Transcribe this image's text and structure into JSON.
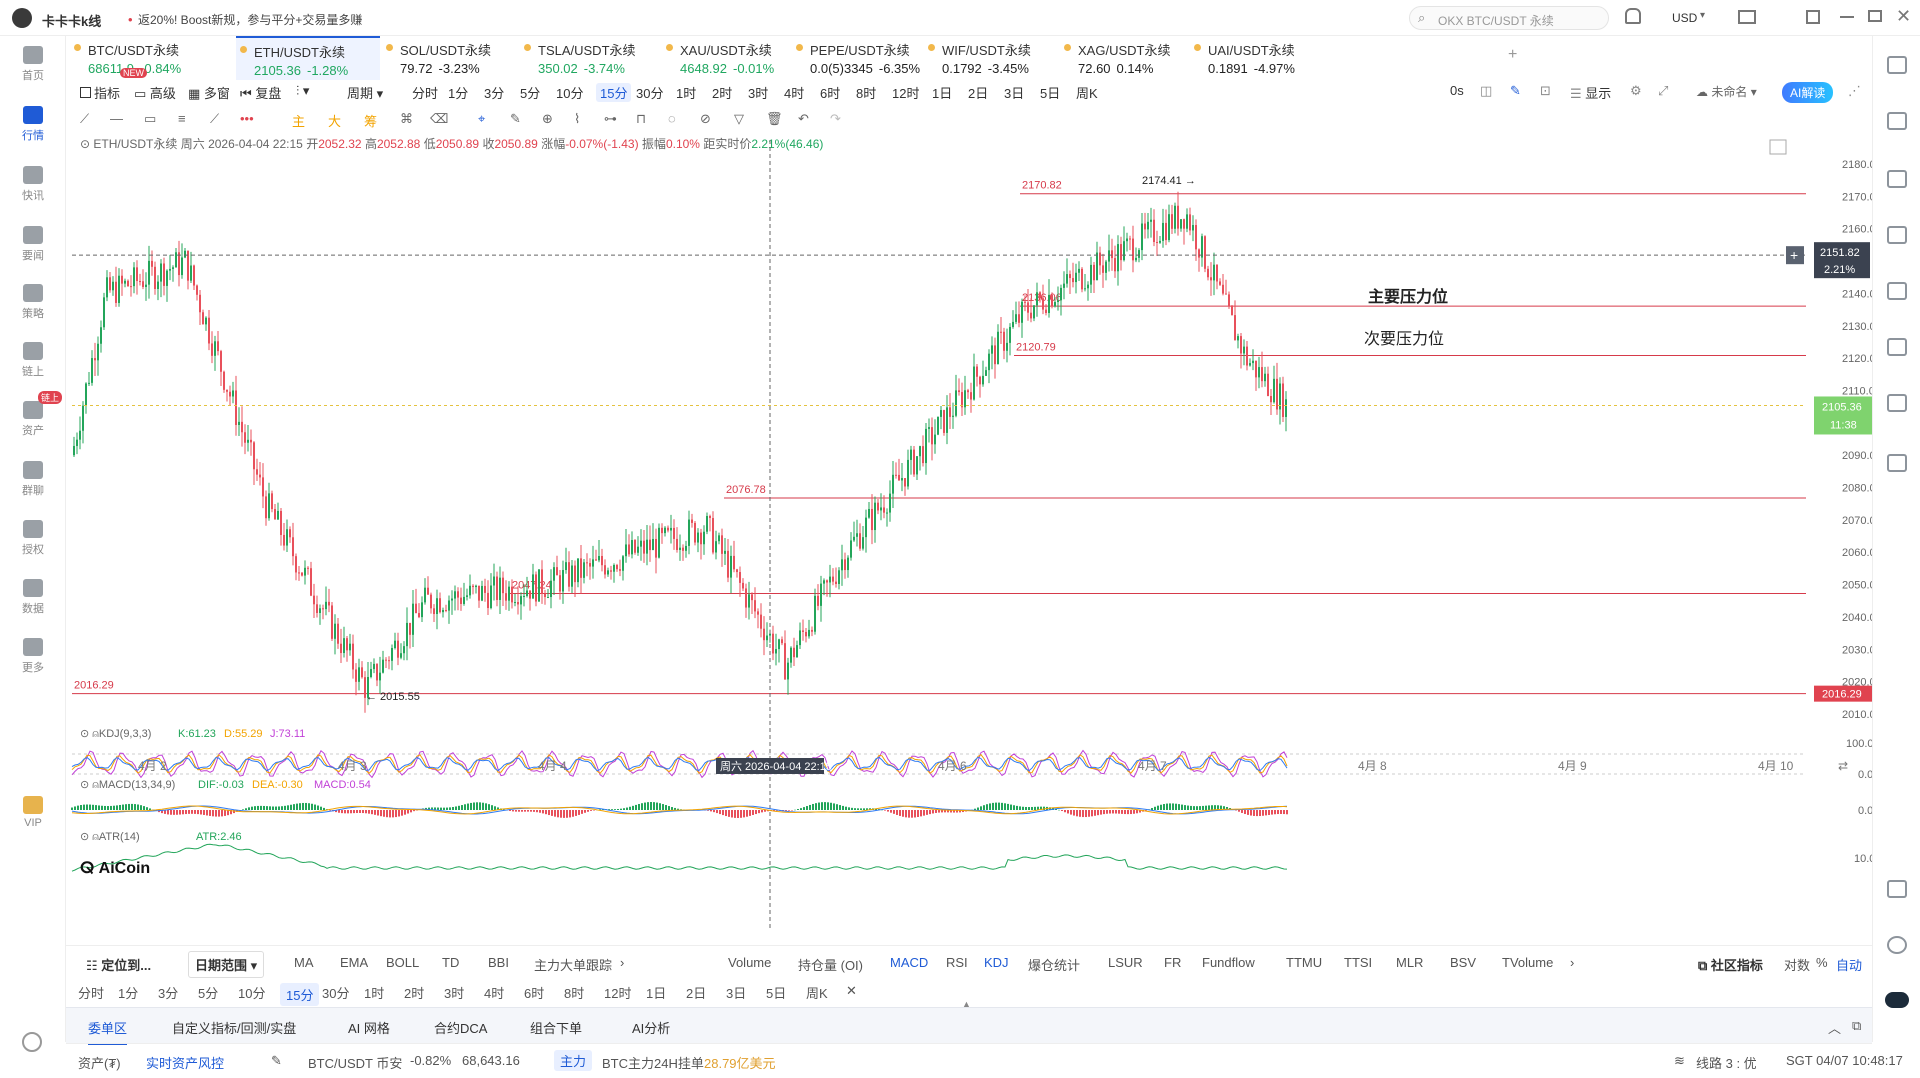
{
  "app": {
    "title": "卡卡卡k线",
    "promo": "返20%! Boost新规，参与平分+交易量多赚",
    "search_placeholder": "OKX BTC/USDT 永续",
    "currency": "USD"
  },
  "nav": [
    {
      "label": "首页",
      "icon": "home-icon"
    },
    {
      "label": "行情",
      "icon": "chart-bar-icon",
      "active": true
    },
    {
      "label": "快讯",
      "icon": "news-icon"
    },
    {
      "label": "要闻",
      "icon": "article-icon"
    },
    {
      "label": "策略",
      "icon": "strategy-icon"
    },
    {
      "label": "链上",
      "icon": "chain-icon"
    },
    {
      "label": "资产",
      "icon": "wallet-icon",
      "badge": "链上"
    },
    {
      "label": "群聊",
      "icon": "chat-icon"
    },
    {
      "label": "授权",
      "icon": "auth-icon"
    },
    {
      "label": "数据",
      "icon": "data-icon"
    },
    {
      "label": "更多",
      "icon": "more-icon"
    },
    {
      "label": "VIP",
      "icon": "vip-icon"
    }
  ],
  "tickers": [
    {
      "name": "BTC/USDT永续",
      "price": "68611.9",
      "change": "-0.84%",
      "dir": "up",
      "badge": "NEW"
    },
    {
      "name": "ETH/USDT永续",
      "price": "2105.36",
      "change": "-1.28%",
      "dir": "up",
      "active": true
    },
    {
      "name": "SOL/USDT永续",
      "price": "79.72",
      "change": "-3.23%",
      "dir": "none"
    },
    {
      "name": "TSLA/USDT永续",
      "price": "350.02",
      "change": "-3.74%",
      "dir": "up"
    },
    {
      "name": "XAU/USDT永续",
      "price": "4648.92",
      "change": "-0.01%",
      "dir": "up"
    },
    {
      "name": "PEPE/USDT永续",
      "price": "0.0(5)3345",
      "change": "-6.35%",
      "dir": "none"
    },
    {
      "name": "WIF/USDT永续",
      "price": "0.1792",
      "change": "-3.45%",
      "dir": "none"
    },
    {
      "name": "XAG/USDT永续",
      "price": "72.60",
      "change": "0.14%",
      "dir": "none"
    },
    {
      "name": "UAI/USDT永续",
      "price": "0.1891",
      "change": "-4.97%",
      "dir": "none"
    }
  ],
  "toolbar1": {
    "indicator": "指标",
    "advanced": "高级",
    "multi": "多窗",
    "replay": "复盘",
    "period": "周期",
    "intervals": [
      "分时",
      "1分",
      "3分",
      "5分",
      "10分",
      "15分",
      "30分",
      "1时",
      "2时",
      "3时",
      "4时",
      "6时",
      "8时",
      "12时",
      "1日",
      "2日",
      "3日",
      "5日",
      "周K"
    ],
    "selected_interval": "15分",
    "countdown": "0s",
    "display": "显示",
    "unnamed": "未命名",
    "ai": "AI解读"
  },
  "toolbar2": {
    "main": "主",
    "big": "大",
    "chip": "筹"
  },
  "info_line": {
    "symbol": "ETH/USDT永续",
    "time": "周六 2026-04-04 22:15",
    "open_label": "开",
    "open": "2052.32",
    "high_label": "高",
    "high": "2052.88",
    "low_label": "低",
    "low": "2050.89",
    "close_label": "收",
    "close": "2050.89",
    "chg_label": "涨幅",
    "chg": "-0.07%(-1.43)",
    "amp_label": "振幅",
    "amp": "0.10%",
    "dist_label": "距实时价",
    "dist": "2.21%(46.46)"
  },
  "chart_data": {
    "type": "candlestick",
    "symbol": "ETH/USDT永续",
    "interval": "15分",
    "ylim": [
      2010,
      2180
    ],
    "y_ticks": [
      "2180.00",
      "2170.00",
      "2160.00",
      "2140.00",
      "2130.00",
      "2120.00",
      "2110.00",
      "2090.00",
      "2080.00",
      "2070.00",
      "2060.00",
      "2050.00",
      "2040.00",
      "2030.00",
      "2020.00",
      "2010.00"
    ],
    "x_ticks": [
      "4月 2",
      "4月 3",
      "4月 4",
      "4月 6",
      "4月 7",
      "4月 8",
      "4月 9",
      "4月 10"
    ],
    "crosshair_time": "周六 2026-04-04 22:15",
    "crosshair_price": {
      "value": "2151.82",
      "pct": "2.21%"
    },
    "last_price": {
      "value": "2105.36",
      "countdown": "11:38"
    },
    "low_marker": "2016.29",
    "price_path_anchors": [
      {
        "x": "4月 1",
        "y": 2090
      },
      {
        "x": "4月 2",
        "y": 2140
      },
      {
        "x": "4月 2",
        "y": 2150
      },
      {
        "x": "4月 3",
        "y": 2075
      },
      {
        "x": "4月 3",
        "y": 2018
      },
      {
        "x": "4月 3",
        "y": 2045
      },
      {
        "x": "4月 4",
        "y": 2050
      },
      {
        "x": "4月 5",
        "y": 2068
      },
      {
        "x": "4月 5",
        "y": 2025
      },
      {
        "x": "4月 6",
        "y": 2060
      },
      {
        "x": "4月 6",
        "y": 2135
      },
      {
        "x": "4月 7",
        "y": 2165
      },
      {
        "x": "4月 7",
        "y": 2120
      },
      {
        "x": "4月 7",
        "y": 2105
      }
    ],
    "horizontal_lines": [
      {
        "value": 2170.82,
        "label": "2170.82"
      },
      {
        "value": 2136.06,
        "label": "2136.06"
      },
      {
        "value": 2120.79,
        "label": "2120.79"
      },
      {
        "value": 2076.78,
        "label": "2076.78"
      },
      {
        "value": 2047.24,
        "label": "2047.24"
      },
      {
        "value": 2016.29,
        "label": "2016.29"
      }
    ],
    "annotations": [
      {
        "text": "2174.41",
        "y": 2174.41
      },
      {
        "text": "2015.55",
        "y": 2015.55
      },
      {
        "text": "主要压力位",
        "y": 2136.06
      },
      {
        "text": "次要压力位",
        "y": 2125
      }
    ],
    "indicators": [
      {
        "name": "KDJ(9,3,3)",
        "values": {
          "K": "61.23",
          "D": "55.29",
          "J": "73.11"
        },
        "ticks": [
          "100.00",
          "0.00"
        ]
      },
      {
        "name": "MACD(13,34,9)",
        "values": {
          "DIF": "-0.03",
          "DEA": "-0.30",
          "MACD": "0.54"
        },
        "ticks": [
          "0.00"
        ]
      },
      {
        "name": "ATR(14)",
        "values": {
          "ATR": "2.46"
        },
        "ticks": [
          "10.00"
        ]
      }
    ],
    "colors": {
      "up": "#23a55a",
      "down": "#e8505b",
      "line": "#d63a4a",
      "k": "#f2a300",
      "d": "#2e7bf3",
      "j": "#c13fd7"
    }
  },
  "watermark": "AiCoin",
  "bottom_bar": {
    "locate": "定位到...",
    "date_range": "日期范围",
    "main_indicators": [
      "MA",
      "EMA",
      "BOLL",
      "TD",
      "BBI",
      "主力大单跟踪"
    ],
    "sub_indicators": [
      "Volume",
      "持仓量 (OI)",
      "MACD",
      "RSI",
      "KDJ",
      "爆仓统计",
      "LSUR",
      "FR",
      "Fundflow",
      "TTMU",
      "TTSI",
      "MLR",
      "BSV",
      "TVolume"
    ],
    "community": "社区指标",
    "log": "对数",
    "pct": "%",
    "auto": "自动"
  },
  "interval_bar": [
    "分时",
    "1分",
    "3分",
    "5分",
    "10分",
    "15分",
    "30分",
    "1时",
    "2时",
    "3时",
    "4时",
    "6时",
    "8时",
    "12时",
    "1日",
    "2日",
    "3日",
    "5日",
    "周K"
  ],
  "panel_tabs": [
    "委单区",
    "自定义指标/回测/实盘",
    "AI 网格",
    "合约DCA",
    "组合下单",
    "AI分析"
  ],
  "status": {
    "assets": "资产(₮)",
    "risk": "实时资产风控",
    "pair": "BTC/USDT 币安",
    "pair_chg": "-0.82%",
    "pair_price": "68,643.16",
    "main_tag": "主力",
    "order_text": "BTC主力24H挂单",
    "order_val": "28.79亿美元",
    "route": "线路 3 : 优",
    "time": "SGT 04/07 10:48:17"
  }
}
